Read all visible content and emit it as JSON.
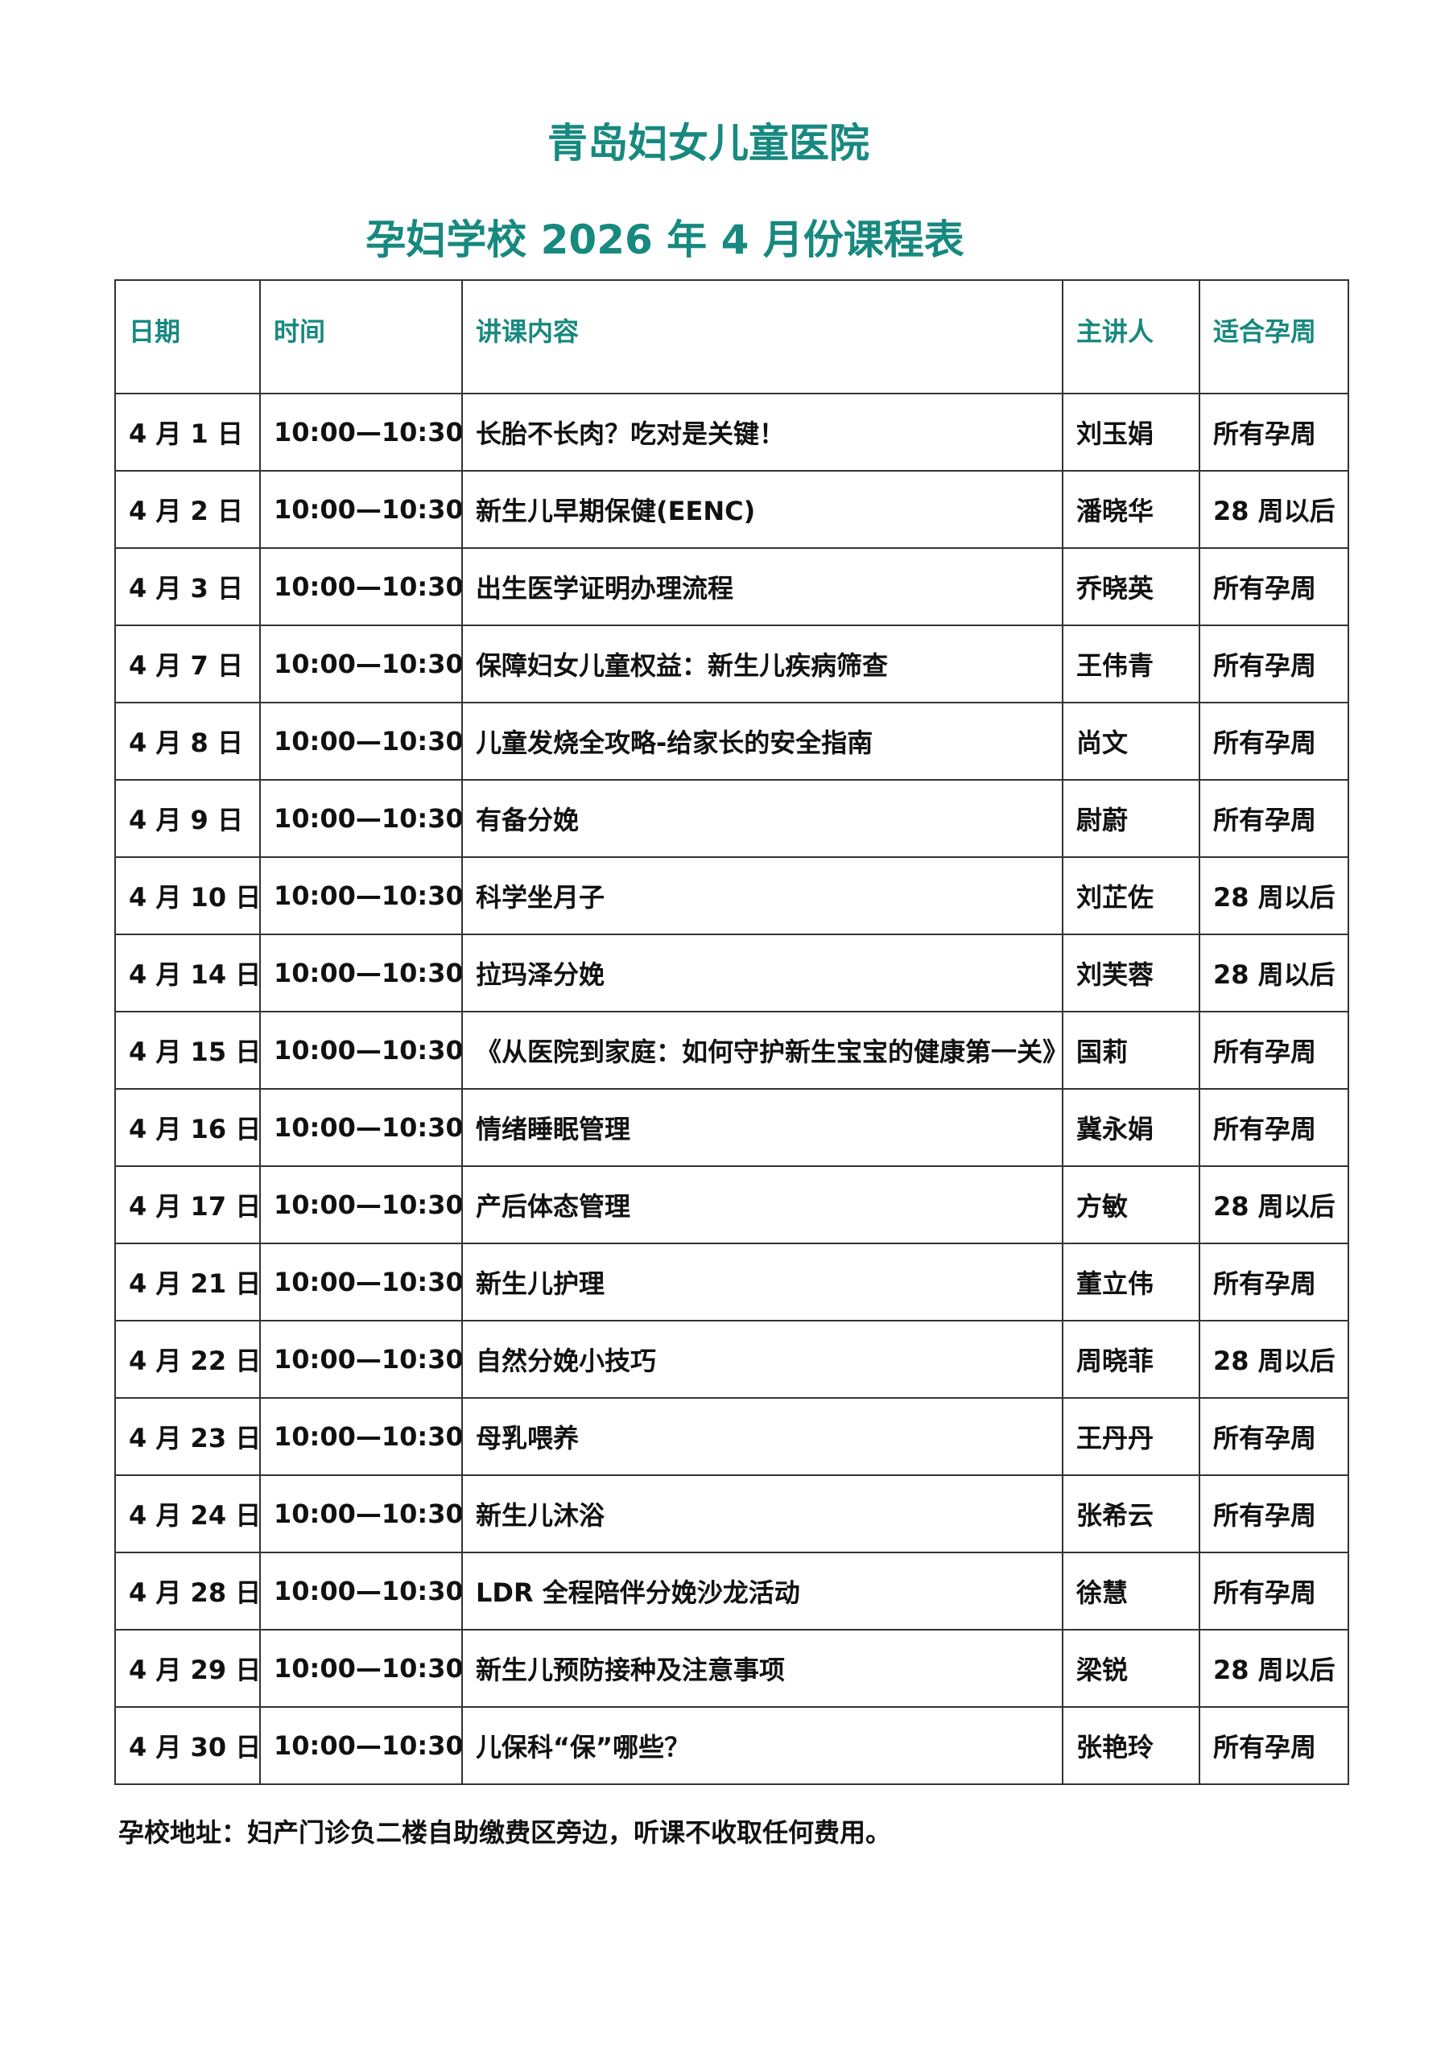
{
  "header": {
    "title_line1": "青岛妇女儿童医院",
    "title_line2": "孕妇学校 2026 年 4 月份课程表"
  },
  "table": {
    "columns": [
      "日期",
      "时间",
      "讲课内容",
      "主讲人",
      "适合孕周"
    ],
    "rows": [
      [
        "4 月 1 日",
        "10:00—10:30",
        "长胎不长肉？吃对是关键！",
        "刘玉娟",
        "所有孕周"
      ],
      [
        "4 月 2 日",
        "10:00—10:30",
        "新生儿早期保健(EENC)",
        "潘晓华",
        "28 周以后"
      ],
      [
        "4 月 3 日",
        "10:00—10:30",
        "出生医学证明办理流程",
        "乔晓英",
        "所有孕周"
      ],
      [
        "4 月 7 日",
        "10:00—10:30",
        "保障妇女儿童权益：新生儿疾病筛查",
        "王伟青",
        "所有孕周"
      ],
      [
        "4 月 8 日",
        "10:00—10:30",
        "儿童发烧全攻略-给家长的安全指南",
        "尚文",
        "所有孕周"
      ],
      [
        "4 月 9 日",
        "10:00—10:30",
        "有备分娩",
        "尉蔚",
        "所有孕周"
      ],
      [
        "4 月 10 日",
        "10:00—10:30",
        "科学坐月子",
        "刘芷佐",
        "28 周以后"
      ],
      [
        "4 月 14 日",
        "10:00—10:30",
        "拉玛泽分娩",
        "刘芙蓉",
        "28 周以后"
      ],
      [
        "4 月 15 日",
        "10:00—10:30",
        "《从医院到家庭：如何守护新生宝宝的健康第一关》",
        "国莉",
        "所有孕周"
      ],
      [
        "4 月 16 日",
        "10:00—10:30",
        "情绪睡眠管理",
        "冀永娟",
        "所有孕周"
      ],
      [
        "4 月 17 日",
        "10:00—10:30",
        "产后体态管理",
        "方敏",
        "28 周以后"
      ],
      [
        "4 月 21 日",
        "10:00—10:30",
        "新生儿护理",
        "董立伟",
        "所有孕周"
      ],
      [
        "4 月 22 日",
        "10:00—10:30",
        "自然分娩小技巧",
        "周晓菲",
        "28 周以后"
      ],
      [
        "4 月 23 日",
        "10:00—10:30",
        "母乳喂养",
        "王丹丹",
        "所有孕周"
      ],
      [
        "4 月 24 日",
        "10:00—10:30",
        "新生儿沐浴",
        "张希云",
        "所有孕周"
      ],
      [
        "4 月 28 日",
        "10:00—10:30",
        "LDR 全程陪伴分娩沙龙活动",
        "徐慧",
        "所有孕周"
      ],
      [
        "4 月 29 日",
        "10:00—10:30",
        "新生儿预防接种及注意事项",
        "梁锐",
        "28 周以后"
      ],
      [
        "4 月 30 日",
        "10:00—10:30",
        "儿保科“保”哪些？",
        "张艳玲",
        "所有孕周"
      ]
    ]
  },
  "footer": {
    "note": "孕校地址：妇产门诊负二楼自助缴费区旁边，听课不收取任何费用。"
  }
}
